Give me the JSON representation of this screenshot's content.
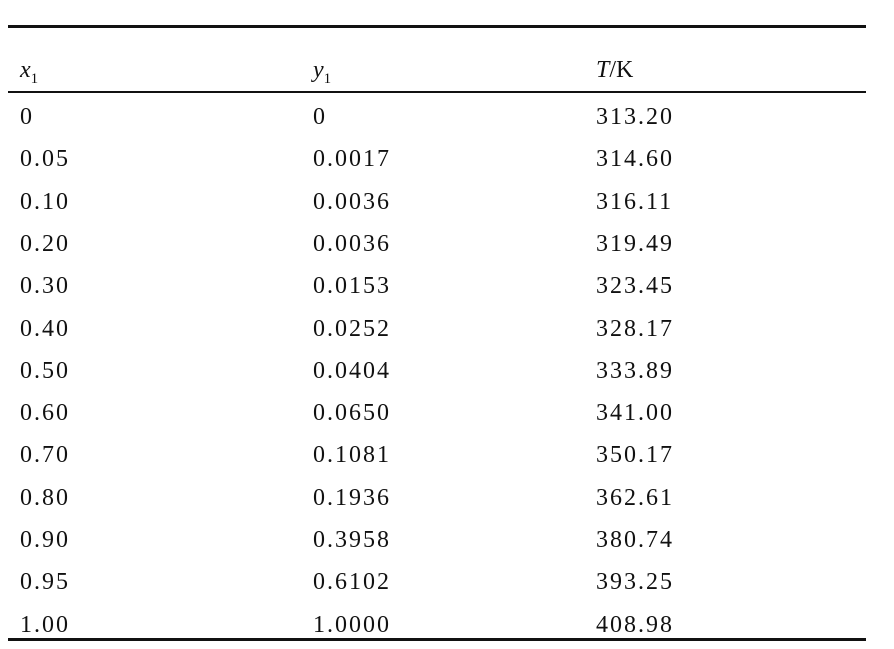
{
  "table": {
    "header": [
      {
        "symbol": "x",
        "sub": "1"
      },
      {
        "symbol": "y",
        "sub": "1"
      },
      {
        "symbol": "T",
        "unit": "/K"
      }
    ],
    "rows": [
      [
        "0",
        "0",
        "313.20"
      ],
      [
        "0.05",
        "0.0017",
        "314.60"
      ],
      [
        "0.10",
        "0.0036",
        "316.11"
      ],
      [
        "0.20",
        "0.0036",
        "319.49"
      ],
      [
        "0.30",
        "0.0153",
        "323.45"
      ],
      [
        "0.40",
        "0.0252",
        "328.17"
      ],
      [
        "0.50",
        "0.0404",
        "333.89"
      ],
      [
        "0.60",
        "0.0650",
        "341.00"
      ],
      [
        "0.70",
        "0.1081",
        "350.17"
      ],
      [
        "0.80",
        "0.1936",
        "362.61"
      ],
      [
        "0.90",
        "0.3958",
        "380.74"
      ],
      [
        "0.95",
        "0.6102",
        "393.25"
      ],
      [
        "1.00",
        "1.0000",
        "408.98"
      ]
    ]
  }
}
